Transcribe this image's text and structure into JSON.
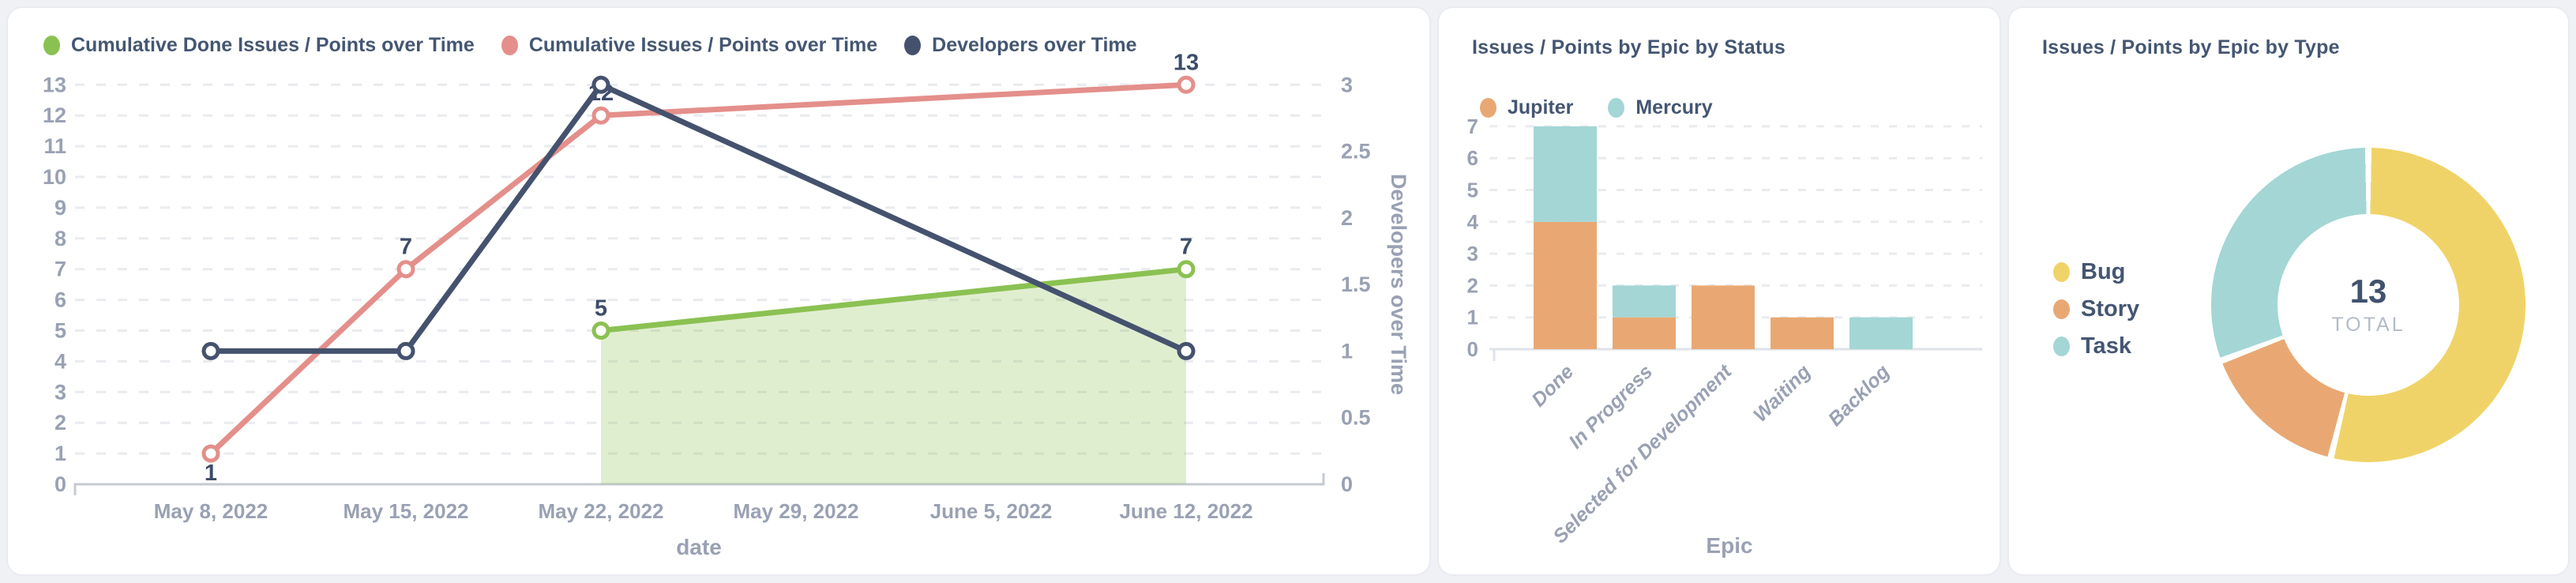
{
  "cards": {
    "timeline": {
      "legend": [
        {
          "label": "Cumulative Done Issues / Points over Time",
          "color": "#8bc152"
        },
        {
          "label": "Cumulative Issues / Points over Time",
          "color": "#e48f8b"
        },
        {
          "label": "Developers over Time",
          "color": "#45526e"
        }
      ]
    },
    "by_status": {
      "title": "Issues / Points by Epic by Status",
      "legend": [
        {
          "label": "Jupiter",
          "color": "#e9a873"
        },
        {
          "label": "Mercury",
          "color": "#a3d6d5"
        }
      ]
    },
    "by_type": {
      "title": "Issues / Points by Epic by Type",
      "legend": [
        {
          "label": "Bug",
          "color": "#f0d368"
        },
        {
          "label": "Story",
          "color": "#e9a873"
        },
        {
          "label": "Task",
          "color": "#a3d6d5"
        }
      ],
      "total": "13",
      "total_label": "TOTAL"
    }
  },
  "chart_data": [
    {
      "id": "timeline",
      "type": "line",
      "x_ticks": [
        "May 8, 2022",
        "May 15, 2022",
        "May 22, 2022",
        "May 29, 2022",
        "June 5, 2022",
        "June 12, 2022"
      ],
      "xlabel": "date",
      "grid": true,
      "left_axis": {
        "ylim": [
          0,
          13
        ],
        "ticks": [
          0,
          1,
          2,
          3,
          4,
          5,
          6,
          7,
          8,
          9,
          10,
          11,
          12,
          13
        ]
      },
      "right_axis": {
        "label": "Developers over Time",
        "ylim": [
          0,
          3
        ],
        "ticks": [
          0,
          0.5,
          1,
          1.5,
          2,
          2.5,
          3
        ]
      },
      "series": [
        {
          "name": "Cumulative Done Issues / Points over Time",
          "color": "#8bc152",
          "axis": "left",
          "area": true,
          "points": [
            {
              "x": 2,
              "y": 5,
              "label": "5",
              "label_pos": "above"
            },
            {
              "x": 5,
              "y": 7,
              "label": "7",
              "label_pos": "above"
            }
          ]
        },
        {
          "name": "Cumulative Issues / Points over Time",
          "color": "#e48f8b",
          "axis": "left",
          "area": false,
          "points": [
            {
              "x": 0,
              "y": 1,
              "label": "1",
              "label_pos": "below"
            },
            {
              "x": 1,
              "y": 7,
              "label": "7",
              "label_pos": "above"
            },
            {
              "x": 2,
              "y": 12,
              "label": "12",
              "label_pos": "above"
            },
            {
              "x": 5,
              "y": 13,
              "label": "13",
              "label_pos": "above"
            }
          ]
        },
        {
          "name": "Developers over Time",
          "color": "#45526e",
          "axis": "right",
          "area": false,
          "points": [
            {
              "x": 0,
              "y": 1
            },
            {
              "x": 1,
              "y": 1
            },
            {
              "x": 2,
              "y": 3
            },
            {
              "x": 5,
              "y": 1
            }
          ]
        }
      ]
    },
    {
      "id": "by_status",
      "type": "bar",
      "categories": [
        "Done",
        "In Progress",
        "Selected for Development",
        "Waiting",
        "Backlog"
      ],
      "xlabel": "Epic",
      "ylim": [
        0,
        7
      ],
      "y_ticks": [
        0,
        1,
        2,
        3,
        4,
        5,
        6,
        7
      ],
      "stacked": true,
      "series": [
        {
          "name": "Jupiter",
          "color": "#e9a873",
          "values": [
            4,
            1,
            2,
            1,
            0
          ]
        },
        {
          "name": "Mercury",
          "color": "#a3d6d5",
          "values": [
            3,
            1,
            0,
            0,
            1
          ]
        }
      ]
    },
    {
      "id": "by_type",
      "type": "donut",
      "total": 13,
      "slices": [
        {
          "label": "Bug",
          "value": 7,
          "color": "#f0d368"
        },
        {
          "label": "Story",
          "value": 2,
          "color": "#e9a873"
        },
        {
          "label": "Task",
          "value": 4,
          "color": "#a3d6d5"
        }
      ]
    }
  ],
  "colors": {
    "background": "#f0f1f5",
    "card_border": "#e9ebf1",
    "title_text": "#445672",
    "axis_text": "#99a1b3",
    "value_label_text": "#3d4c6a",
    "gridline": "#e9ebef",
    "axis_line": "#c6cad2",
    "bar_axis_line": "#dfe2e8",
    "green_fill": "rgba(139,193,82,0.27)",
    "total_label_text": "#b4bbc7"
  }
}
